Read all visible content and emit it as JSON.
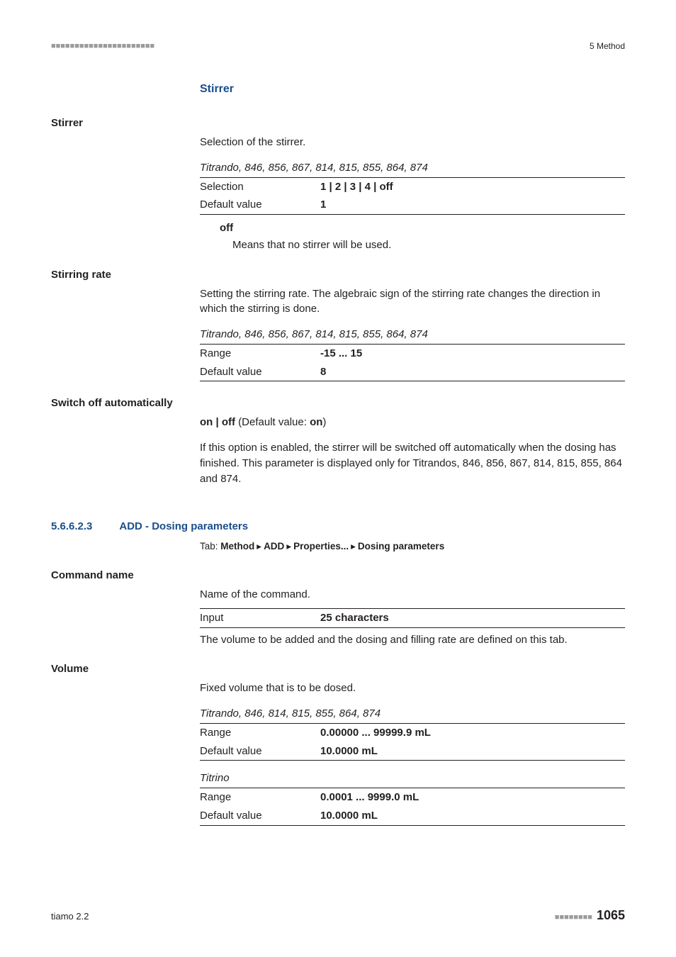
{
  "header": {
    "dashes": "■■■■■■■■■■■■■■■■■■■■■■",
    "chapter": "5 Method"
  },
  "stirrer_section": {
    "heading": "Stirrer",
    "stirrer": {
      "label": "Stirrer",
      "desc": "Selection of the stirrer.",
      "models": "Titrando, 846, 856, 867, 814, 815, 855, 864, 874",
      "rows": {
        "selection_k": "Selection",
        "selection_v": "1 | 2 | 3 | 4 | off",
        "default_k": "Default value",
        "default_v": "1"
      },
      "off_term": "off",
      "off_body": "Means that no stirrer will be used."
    },
    "stirring_rate": {
      "label": "Stirring rate",
      "desc": "Setting the stirring rate. The algebraic sign of the stirring rate changes the direction in which the stirring is done.",
      "models": "Titrando, 846, 856, 867, 814, 815, 855, 864, 874",
      "rows": {
        "range_k": "Range",
        "range_v": "-15 ... 15",
        "default_k": "Default value",
        "default_v": "8"
      }
    },
    "switch_off": {
      "label": "Switch off automatically",
      "onoff_prefix": "on | off",
      "onoff_mid": " (Default value: ",
      "onoff_val": "on",
      "onoff_suffix": ")",
      "desc": "If this option is enabled, the stirrer will be switched off automatically when the dosing has finished. This parameter is displayed only for Titrandos, 846, 856, 867, 814, 815, 855, 864 and 874."
    }
  },
  "dosing_section": {
    "num": "5.6.6.2.3",
    "title": "ADD - Dosing parameters",
    "tab_prefix": "Tab: ",
    "tab_parts": [
      "Method",
      "ADD",
      "Properties...",
      "Dosing parameters"
    ],
    "command_name": {
      "label": "Command name",
      "desc": "Name of the command.",
      "rows": {
        "input_k": "Input",
        "input_v": "25 characters"
      },
      "desc2": "The volume to be added and the dosing and filling rate are defined on this tab."
    },
    "volume": {
      "label": "Volume",
      "desc": "Fixed volume that is to be dosed.",
      "t1_models": "Titrando, 846, 814, 815, 855, 864, 874",
      "t1": {
        "range_k": "Range",
        "range_v": "0.00000 ... 99999.9 mL",
        "default_k": "Default value",
        "default_v": "10.0000 mL"
      },
      "t2_models": "Titrino",
      "t2": {
        "range_k": "Range",
        "range_v": "0.0001 ... 9999.0 mL",
        "default_k": "Default value",
        "default_v": "10.0000 mL"
      }
    }
  },
  "footer": {
    "product": "tiamo 2.2",
    "pagedash": "■■■■■■■■",
    "pagenum": "1065"
  }
}
